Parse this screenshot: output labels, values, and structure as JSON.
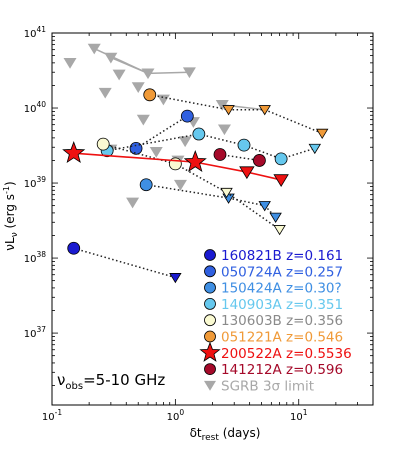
{
  "chart_data": {
    "type": "scatter",
    "xscale": "log",
    "yscale": "log",
    "xlim": [
      0.1,
      40
    ],
    "ylim": [
      1.1e+36,
      1e+41
    ],
    "xlabel": "δt",
    "xlabel_sub": "rest",
    "xlabel_units": " (days)",
    "ylabel": "νL",
    "ylabel_sub": "ν",
    "ylabel_units": " (erg s",
    "ylabel_sup": "-1",
    "ylabel_close": ")",
    "x_ticks": [
      {
        "value": 0.1,
        "base": "10",
        "exp": "-1"
      },
      {
        "value": 1,
        "base": "10",
        "exp": "0"
      },
      {
        "value": 10,
        "base": "10",
        "exp": "1"
      }
    ],
    "y_ticks": [
      {
        "value": 1e+37,
        "base": "10",
        "exp": "37"
      },
      {
        "value": 1e+38,
        "base": "10",
        "exp": "38"
      },
      {
        "value": 1e+39,
        "base": "10",
        "exp": "39"
      },
      {
        "value": 1e+40,
        "base": "10",
        "exp": "40"
      },
      {
        "value": 1e+41,
        "base": "10",
        "exp": "41"
      }
    ],
    "annotation": {
      "nu": "ν",
      "sub": "obs",
      "text": "=5-10 GHz"
    },
    "legend_position": "lower right",
    "series": [
      {
        "name": "160821B z=0.161",
        "color": "#1a1ad0",
        "marker": "circle",
        "points": [
          [
            0.15,
            1.35e+38
          ]
        ],
        "limits": [
          [
            1.0,
            5.5e+37
          ]
        ],
        "connect": "dotted"
      },
      {
        "name": "050724A z=0.257",
        "color": "#3060e0",
        "marker": "circle",
        "points": [
          [
            0.48,
            2.9e+39
          ],
          [
            1.25,
            7.8e+39
          ]
        ],
        "limits": [],
        "connect": "dotted"
      },
      {
        "name": "150424A z=0.30?",
        "color": "#3f8fe3",
        "marker": "circle",
        "points": [
          [
            0.58,
            9.5e+38
          ]
        ],
        "limits": [
          [
            2.7,
            6.3e+38
          ],
          [
            5.3,
            5e+38
          ],
          [
            6.5,
            3.5e+38
          ]
        ],
        "connect": "dotted"
      },
      {
        "name": "140903A z=0.351",
        "color": "#66c8ee",
        "marker": "circle",
        "points": [
          [
            0.28,
            2.7e+39
          ],
          [
            1.55,
            4.5e+39
          ],
          [
            3.6,
            3.2e+39
          ],
          [
            7.2,
            2.1e+39
          ]
        ],
        "limits": [
          [
            13.5,
            2.9e+39
          ]
        ],
        "connect": "dotted"
      },
      {
        "name": "130603B z=0.356",
        "color": "#fafad2",
        "marker": "circle",
        "points": [
          [
            0.26,
            3.3e+39
          ],
          [
            1.0,
            1.8e+39
          ]
        ],
        "limits": [
          [
            2.6,
            7.5e+38
          ],
          [
            7.0,
            2.4e+38
          ]
        ],
        "connect": "dotted"
      },
      {
        "name": "051221A z=0.546",
        "color": "#f09a38",
        "marker": "circle",
        "points": [
          [
            0.62,
            1.5e+40
          ]
        ],
        "limits": [
          [
            2.7,
            9.5e+39
          ],
          [
            5.3,
            9.5e+39
          ],
          [
            15.5,
            4.6e+39
          ]
        ],
        "connect": "dotted"
      },
      {
        "name": "200522A z=0.5536",
        "color": "#ee1111",
        "marker": "star",
        "points": [
          [
            0.15,
            2.5e+39
          ],
          [
            1.45,
            1.9e+39
          ]
        ],
        "limits": [
          [
            3.8,
            1.4e+39
          ],
          [
            7.2,
            1.1e+39
          ]
        ],
        "connect": "solid"
      },
      {
        "name": "141212A z=0.596",
        "color": "#a50a2a",
        "marker": "circle",
        "points": [
          [
            2.3,
            2.4e+39
          ],
          [
            4.8,
            2e+39
          ]
        ],
        "limits": [],
        "connect": "dotted"
      }
    ],
    "upper_limits": {
      "name": "SGRB 3σ limit",
      "color": "#a8a8a8",
      "points": [
        [
          0.14,
          4e+40
        ],
        [
          0.22,
          6.2e+40
        ],
        [
          0.3,
          4.7e+40
        ],
        [
          0.35,
          2.8e+40
        ],
        [
          0.6,
          2.9e+40
        ],
        [
          1.3,
          3e+40
        ],
        [
          0.27,
          1.6e+40
        ],
        [
          0.5,
          1.9e+40
        ],
        [
          0.8,
          1.3e+40
        ],
        [
          0.55,
          7e+39
        ],
        [
          1.4,
          6.5e+39
        ],
        [
          2.4,
          1.1e+40
        ],
        [
          2.5,
          5.2e+39
        ],
        [
          1.2,
          3.6e+39
        ],
        [
          0.3,
          2.8e+39
        ],
        [
          0.7,
          2.6e+39
        ],
        [
          1.05,
          2e+39
        ],
        [
          0.45,
          5.5e+38
        ],
        [
          1.1,
          9.5e+38
        ]
      ],
      "lines": [
        [
          [
            0.22,
            6.2e+40
          ],
          [
            0.6,
            2.9e+40
          ]
        ],
        [
          [
            0.3,
            4.7e+40
          ],
          [
            0.6,
            2.9e+40
          ]
        ],
        [
          [
            0.6,
            2.9e+40
          ],
          [
            1.3,
            3e+40
          ]
        ],
        [
          [
            2.4,
            1.1e+40
          ],
          [
            5.3,
            9.5e+39
          ]
        ]
      ]
    }
  }
}
